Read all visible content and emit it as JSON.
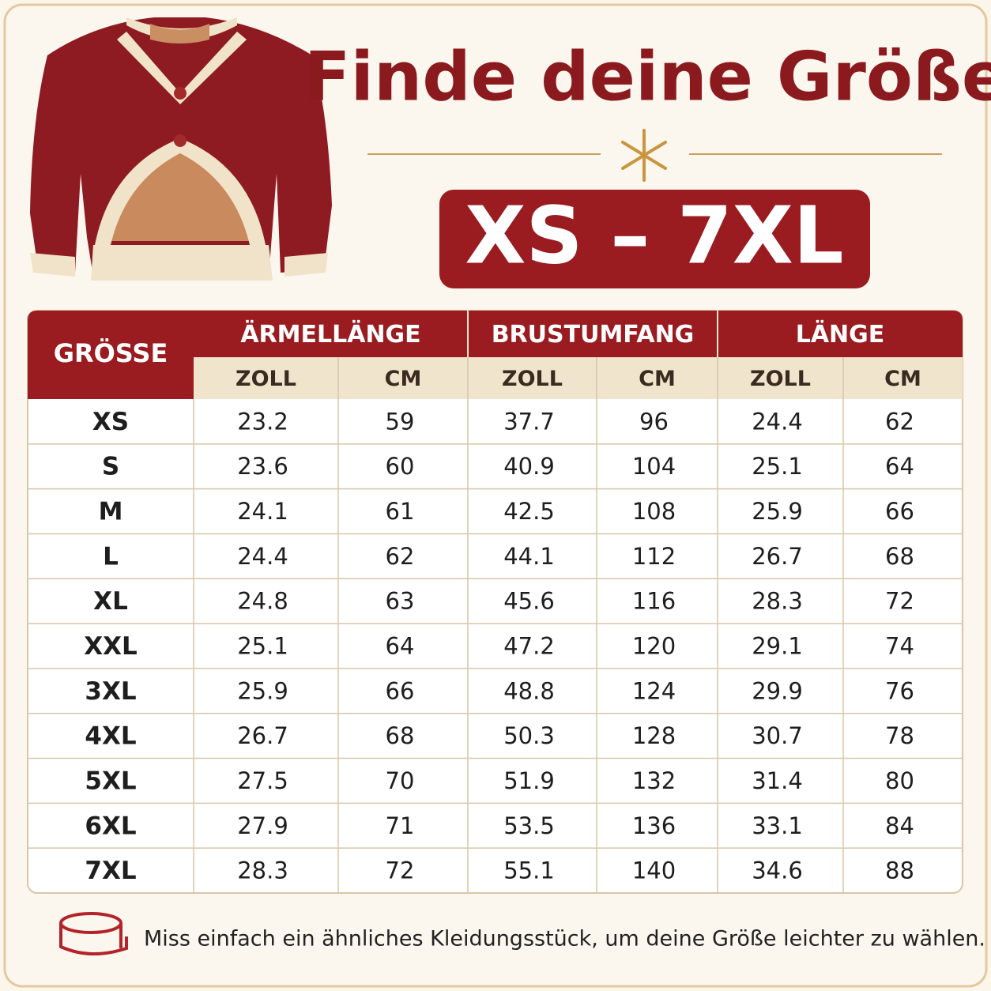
{
  "header": {
    "title": "Finde deine Größe",
    "range": "XS – 7XL"
  },
  "table": {
    "size_header": "GRÖSSE",
    "groups": [
      "ÄRMELLÄNGE",
      "BRUSTUMFANG",
      "LÄNGE"
    ],
    "units": [
      "ZOLL",
      "CM",
      "ZOLL",
      "CM",
      "ZOLL",
      "CM"
    ],
    "rows": [
      [
        "XS",
        "23.2",
        "59",
        "37.7",
        "96",
        "24.4",
        "62"
      ],
      [
        "S",
        "23.6",
        "60",
        "40.9",
        "104",
        "25.1",
        "64"
      ],
      [
        "M",
        "24.1",
        "61",
        "42.5",
        "108",
        "25.9",
        "66"
      ],
      [
        "L",
        "24.4",
        "62",
        "44.1",
        "112",
        "26.7",
        "68"
      ],
      [
        "XL",
        "24.8",
        "63",
        "45.6",
        "116",
        "28.3",
        "72"
      ],
      [
        "XXL",
        "25.1",
        "64",
        "47.2",
        "120",
        "29.1",
        "74"
      ],
      [
        "3XL",
        "25.9",
        "66",
        "48.8",
        "124",
        "29.9",
        "76"
      ],
      [
        "4XL",
        "26.7",
        "68",
        "50.3",
        "128",
        "30.7",
        "78"
      ],
      [
        "5XL",
        "27.5",
        "70",
        "51.9",
        "132",
        "31.4",
        "80"
      ],
      [
        "6XL",
        "27.9",
        "71",
        "53.5",
        "136",
        "33.1",
        "84"
      ],
      [
        "7XL",
        "28.3",
        "72",
        "55.1",
        "140",
        "34.6",
        "88"
      ]
    ]
  },
  "footer": {
    "note": "Miss einfach ein ähnliches Kleidungsstück, um deine Größe leichter zu wählen."
  }
}
